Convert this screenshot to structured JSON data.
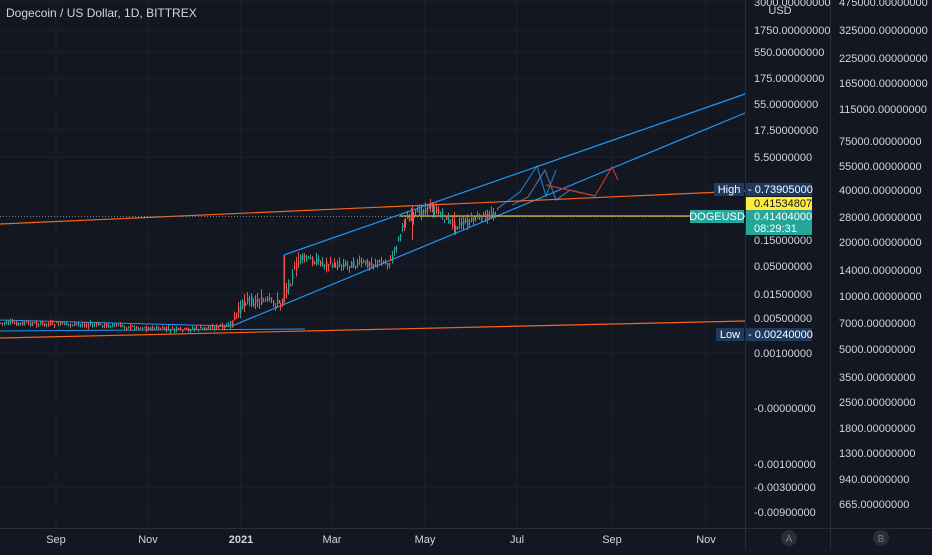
{
  "chart_data": {
    "type": "candlestick",
    "title": "Dogecoin / US Dollar, 1D, BITTREX",
    "symbol": "DOGEUSD",
    "currency_label": "USD",
    "x_ticks": [
      "Sep",
      "Nov",
      "2021",
      "Mar",
      "May",
      "Jul",
      "Sep",
      "Nov"
    ],
    "y_scale": "log",
    "left_axis_ticks": [
      "3000.00000000",
      "1750.00000000",
      "550.00000000",
      "175.00000000",
      "55.00000000",
      "17.50000000",
      "5.50000000",
      "0.15000000",
      "0.05000000",
      "0.01500000",
      "0.00500000",
      "0.00100000",
      "-0.00000000",
      "-0.00100000",
      "-0.00300000",
      "-0.00900000"
    ],
    "right_axis_ticks": [
      "475000.00000000",
      "325000.00000000",
      "225000.00000000",
      "165000.00000000",
      "115000.00000000",
      "75000.00000000",
      "55000.00000000",
      "40000.00000000",
      "28000.00000000",
      "20000.00000000",
      "14000.00000000",
      "10000.00000000",
      "7000.00000000",
      "5000.00000000",
      "3500.00000000",
      "2500.00000000",
      "1800.00000000",
      "1300.00000000",
      "940.00000000",
      "665.00000000"
    ],
    "markers": {
      "high_label": "High",
      "high_value": "0.73905000",
      "current_price": "0.41534807",
      "last_symbol": "DOGEUSD",
      "last_value": "0.41404000",
      "countdown": "08:29:31",
      "low_label": "Low",
      "low_value": "0.00240000"
    },
    "footer_buttons": [
      "A",
      "B"
    ],
    "colors": {
      "background": "#131722",
      "grid": "#1e222d",
      "up": "#26a69a",
      "down": "#ef5350",
      "channel": "#2196f3",
      "trendline": "#f7631b",
      "price_line": "#ffeb3b",
      "last_tag": "#26a69a",
      "marker_tag": "#1e3a5f",
      "current_tag": "#ffeb3b"
    }
  }
}
